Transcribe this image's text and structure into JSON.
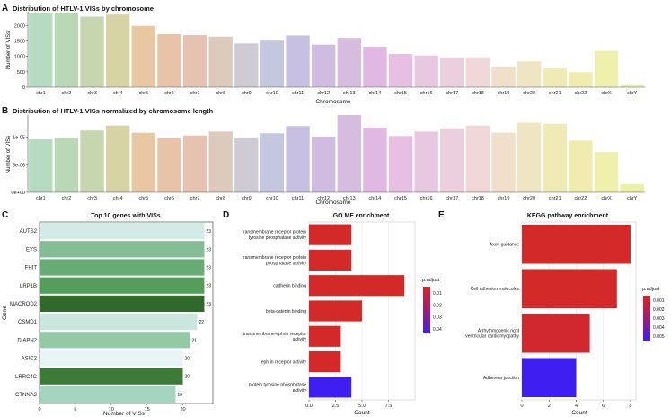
{
  "chart_data": [
    {
      "panel": "A",
      "type": "bar",
      "title": "Distribution of HTLV-1 VISs by chromosome",
      "xlabel": "Chromosome",
      "ylabel": "Number of VISs",
      "ylim": [
        0,
        2450
      ],
      "yticks": [
        0,
        500,
        1000,
        1500,
        2000
      ],
      "categories": [
        "chr1",
        "chr2",
        "chr3",
        "chr4",
        "chr5",
        "chr6",
        "chr7",
        "chr8",
        "chr9",
        "chr10",
        "chr11",
        "chr12",
        "chr13",
        "chr14",
        "chr15",
        "chr16",
        "chr17",
        "chr18",
        "chr19",
        "chr20",
        "chr21",
        "chr22",
        "chrX",
        "chrY"
      ],
      "values": [
        2400,
        2420,
        2290,
        2360,
        1990,
        1720,
        1690,
        1640,
        1420,
        1510,
        1680,
        1380,
        1600,
        1310,
        1080,
        1030,
        970,
        970,
        660,
        840,
        610,
        490,
        1180,
        70
      ],
      "colors": [
        "#b5dbc0",
        "#b9d8b5",
        "#c7d6ae",
        "#d8d3a5",
        "#e8c8a2",
        "#e9c3a8",
        "#e6c2b1",
        "#dccabc",
        "#cfcbd4",
        "#c5c7e0",
        "#c8c0e2",
        "#d0bce0",
        "#d6bcdf",
        "#e0b8e1",
        "#e6bfe3",
        "#e8c7e1",
        "#ebcfdc",
        "#eed7d6",
        "#f0e0ca",
        "#f0e5c2",
        "#f0eab6",
        "#f0ecb0",
        "#eef0ac",
        "#ecf0a6"
      ]
    },
    {
      "panel": "B",
      "type": "bar",
      "title": "Distribution of HTLV-1 VISs normalized by chromosome length",
      "xlabel": "Chromosome",
      "ylabel": "Number of VISs",
      "ylim": [
        0,
        1.4e-05
      ],
      "ytick_values": [
        0,
        5e-06,
        1e-05
      ],
      "ytick_labels": [
        "0e+00",
        "5e-06",
        "1e-05"
      ],
      "categories": [
        "chr1",
        "chr2",
        "chr3",
        "chr4",
        "chr5",
        "chr6",
        "chr7",
        "chr8",
        "chr9",
        "chr10",
        "chr11",
        "chr12",
        "chr13",
        "chr14",
        "chr15",
        "chr16",
        "chr17",
        "chr18",
        "chr19",
        "chr20",
        "chr21",
        "chr22",
        "chrX",
        "chrY"
      ],
      "values": [
        9.6e-06,
        9.9e-06,
        1.12e-05,
        1.21e-05,
        1.08e-05,
        9.8e-06,
        1.03e-05,
        1.1e-05,
        9.8e-06,
        1.07e-05,
        1.2e-05,
        1.01e-05,
        1.4e-05,
        1.17e-05,
        1.02e-05,
        1.1e-05,
        1.16e-05,
        1.21e-05,
        1.08e-05,
        1.26e-05,
        1.24e-05,
        9.4e-06,
        7.3e-06,
        1.5e-06
      ],
      "colors": [
        "#b5dbc0",
        "#b9d8b5",
        "#c7d6ae",
        "#d8d3a5",
        "#e8c8a2",
        "#e9c3a8",
        "#e6c2b1",
        "#dccabc",
        "#cfcbd4",
        "#c5c7e0",
        "#c8c0e2",
        "#d0bce0",
        "#d6bcdf",
        "#e0b8e1",
        "#e6bfe3",
        "#e8c7e1",
        "#ebcfdc",
        "#eed7d6",
        "#f0e0ca",
        "#f0e5c2",
        "#f0eab6",
        "#f0ecb0",
        "#eef0ac",
        "#ecf0a6"
      ]
    },
    {
      "panel": "C",
      "type": "bar",
      "orientation": "horizontal",
      "title": "Top 10 genes with VISs",
      "xlabel": "Number of VISs",
      "ylabel": "Gene",
      "xlim": [
        0,
        24.2
      ],
      "xticks": [
        0,
        5,
        10,
        15,
        20
      ],
      "categories": [
        "AUTS2",
        "EYS",
        "FHIT",
        "LRP1B",
        "MACROD2",
        "CSMD1",
        "DIAPH2",
        "ASIC2",
        "LRRC4C",
        "CTNNA2"
      ],
      "values": [
        23,
        23,
        23,
        23,
        23,
        22,
        21,
        20,
        20,
        19
      ],
      "value_labels": [
        "23",
        "23",
        "23",
        "23",
        "23",
        "22",
        "21",
        "20",
        "20",
        "19"
      ],
      "colors": [
        "#d3ebe7",
        "#84bc96",
        "#66ac74",
        "#569c5a",
        "#30692a",
        "#cae7df",
        "#93caa3",
        "#e9f5f4",
        "#3c7a38",
        "#a6d5be"
      ]
    },
    {
      "panel": "D",
      "type": "bar",
      "orientation": "horizontal",
      "title": "GO MF enrichment",
      "xlabel": "Count",
      "xlim": [
        0,
        10
      ],
      "xticks": [
        0,
        2.5,
        5,
        7.5
      ],
      "xtick_labels": [
        "0.0",
        "2.5",
        "5.0",
        "7.5"
      ],
      "categories": [
        [
          "transmembrane receptor protein",
          "tyrosine phosphatase activity"
        ],
        [
          "transmembrane receptor protein",
          "phosphatase activity"
        ],
        [
          "cadherin binding"
        ],
        [
          "beta-catenin binding"
        ],
        [
          "transmembrane-ephrin receptor",
          "activity"
        ],
        [
          "ephrin receptor activity"
        ],
        [
          "protein tyrosine phosphatase",
          "activity"
        ]
      ],
      "values": [
        4,
        4,
        9,
        5,
        3,
        3,
        4
      ],
      "colors": [
        "#d42929",
        "#d42929",
        "#d42929",
        "#d42929",
        "#d42929",
        "#d42929",
        "#3f1ef2"
      ],
      "legend_title": "p.adjust",
      "legend_labels": [
        "0.01",
        "0.02",
        "0.03",
        "0.04"
      ],
      "legend_placement": "right"
    },
    {
      "panel": "E",
      "type": "bar",
      "orientation": "horizontal",
      "title": "KEGG pathway enrichment",
      "xlabel": "Count",
      "xlim": [
        0,
        8.4
      ],
      "xticks": [
        0,
        2,
        4,
        6,
        8
      ],
      "categories": [
        [
          "Axon guidance"
        ],
        [
          "Cell adhesion molecules"
        ],
        [
          "Arrhythmogenic right",
          "ventricular cardiomyopathy"
        ],
        [
          "Adherens junction"
        ]
      ],
      "values": [
        8,
        7,
        5,
        4
      ],
      "colors": [
        "#d42929",
        "#d42929",
        "#d12830",
        "#3f1ef2"
      ],
      "legend_title": "p.adjust",
      "legend_labels": [
        "0.001",
        "0.002",
        "0.003",
        "0.004",
        "0.005"
      ],
      "legend_placement": "right"
    }
  ]
}
